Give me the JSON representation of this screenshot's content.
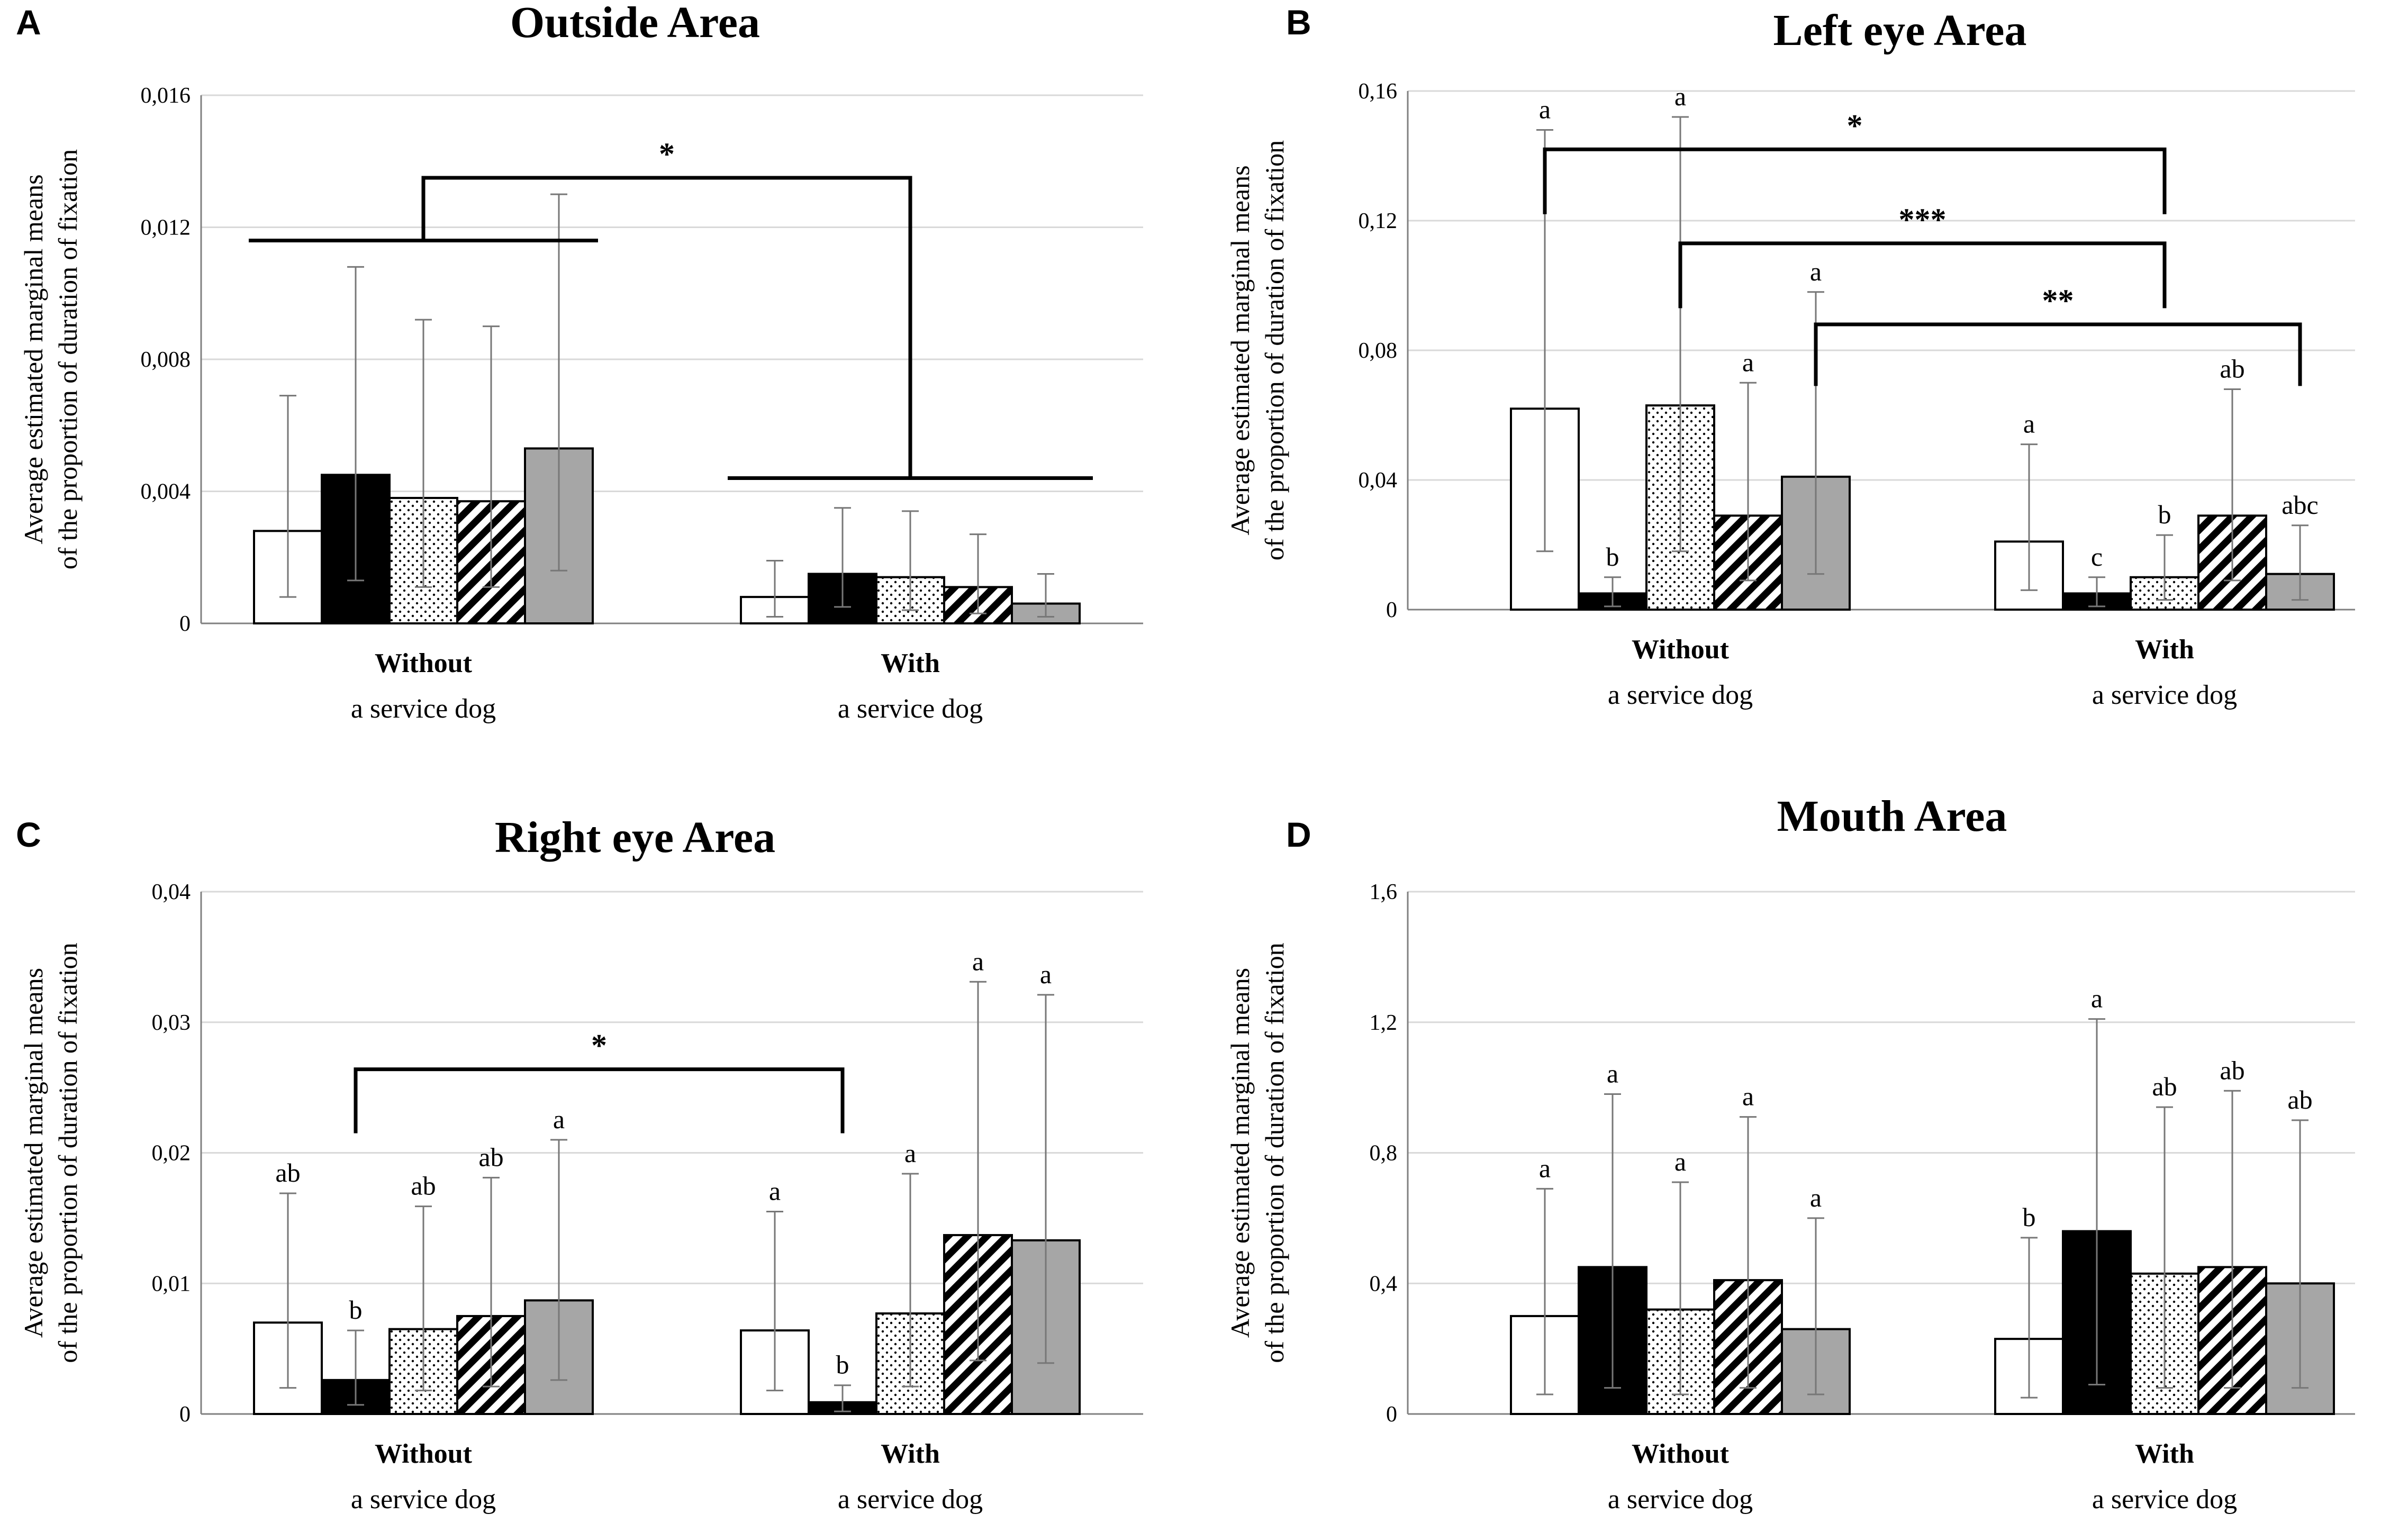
{
  "chart_data": [
    {
      "type": "bar",
      "letter": "A",
      "title": "Outside Area",
      "ylabel_line1": "Average estimated marginal means",
      "ylabel_line2": "of the proportion of duration of fixation",
      "ylim": [
        0,
        0.016
      ],
      "ticks": [
        0,
        0.004,
        0.008,
        0.012,
        0.016
      ],
      "tick_labels": [
        "0",
        "0,004",
        "0,008",
        "0,012",
        "0,016"
      ],
      "groups": [
        {
          "name": "Without",
          "sub": "a service  dog"
        },
        {
          "name": "With",
          "sub": "a service  dog"
        }
      ],
      "series": [
        {
          "pattern": "white",
          "values": [
            0.0028,
            0.0008
          ],
          "err_low": [
            0.0008,
            0.0002
          ],
          "err_high": [
            0.0069,
            0.0019
          ],
          "letters": [
            "",
            ""
          ]
        },
        {
          "pattern": "black",
          "values": [
            0.0045,
            0.0015
          ],
          "err_low": [
            0.0013,
            0.0005
          ],
          "err_high": [
            0.0108,
            0.0035
          ],
          "letters": [
            "",
            ""
          ]
        },
        {
          "pattern": "dots",
          "values": [
            0.0038,
            0.0014
          ],
          "err_low": [
            0.0011,
            0.0004
          ],
          "err_high": [
            0.0092,
            0.0034
          ],
          "letters": [
            "",
            ""
          ]
        },
        {
          "pattern": "stripes",
          "values": [
            0.0037,
            0.0011
          ],
          "err_low": [
            0.0011,
            0.0003
          ],
          "err_high": [
            0.009,
            0.0027
          ],
          "letters": [
            "",
            ""
          ]
        },
        {
          "pattern": "grey",
          "values": [
            0.0053,
            0.0006
          ],
          "err_low": [
            0.0016,
            0.0002
          ],
          "err_high": [
            0.013,
            0.0015
          ],
          "letters": [
            "",
            ""
          ]
        }
      ],
      "significance": [
        {
          "label": "*",
          "type": "group",
          "level": 0.0135,
          "left_leg": 0.0116,
          "right_leg": 0.0044
        }
      ]
    },
    {
      "type": "bar",
      "letter": "B",
      "title": "Left eye Area",
      "ylabel_line1": "Average estimated marginal means",
      "ylabel_line2": "of the proportion of duration of fixation",
      "ylim": [
        0,
        0.16
      ],
      "ticks": [
        0,
        0.04,
        0.08,
        0.12,
        0.16
      ],
      "tick_labels": [
        "0",
        "0,04",
        "0,08",
        "0,12",
        "0,16"
      ],
      "groups": [
        {
          "name": "Without",
          "sub": "a service  dog"
        },
        {
          "name": "With",
          "sub": "a service  dog"
        }
      ],
      "series": [
        {
          "pattern": "white",
          "values": [
            0.062,
            0.021
          ],
          "err_low": [
            0.018,
            0.006
          ],
          "err_high": [
            0.148,
            0.051
          ],
          "letters": [
            "a",
            "a"
          ]
        },
        {
          "pattern": "black",
          "values": [
            0.005,
            0.005
          ],
          "err_low": [
            0.001,
            0.001
          ],
          "err_high": [
            0.01,
            0.01
          ],
          "letters": [
            "b",
            "c"
          ]
        },
        {
          "pattern": "dots",
          "values": [
            0.063,
            0.01
          ],
          "err_low": [
            0.018,
            0.003
          ],
          "err_high": [
            0.152,
            0.023
          ],
          "letters": [
            "a",
            "b"
          ]
        },
        {
          "pattern": "stripes",
          "values": [
            0.029,
            0.029
          ],
          "err_low": [
            0.009,
            0.009
          ],
          "err_high": [
            0.07,
            0.068
          ],
          "letters": [
            "a",
            "ab"
          ]
        },
        {
          "pattern": "grey",
          "values": [
            0.041,
            0.011
          ],
          "err_low": [
            0.011,
            0.003
          ],
          "err_high": [
            0.098,
            0.026
          ],
          "letters": [
            "a",
            "abc"
          ]
        }
      ],
      "significance": [
        {
          "label": "*",
          "type": "bar",
          "from": [
            0,
            0
          ],
          "to": [
            1,
            2
          ],
          "level": 0.142,
          "left_leg": 0.122,
          "right_leg": 0.122
        },
        {
          "label": "***",
          "type": "bar",
          "from": [
            0,
            2
          ],
          "to": [
            1,
            2
          ],
          "level": 0.113,
          "left_leg": 0.093,
          "right_leg": 0.093
        },
        {
          "label": "**",
          "type": "bar",
          "from": [
            0,
            4
          ],
          "to": [
            1,
            4
          ],
          "level": 0.088,
          "left_leg": 0.069,
          "right_leg": 0.069
        }
      ]
    },
    {
      "type": "bar",
      "letter": "C",
      "title": "Right eye Area",
      "ylabel_line1": "Average estimated marginal means",
      "ylabel_line2": "of the proportion of duration of fixation",
      "ylim": [
        0,
        0.04
      ],
      "ticks": [
        0,
        0.01,
        0.02,
        0.03,
        0.04
      ],
      "tick_labels": [
        "0",
        "0,01",
        "0,02",
        "0,03",
        "0,04"
      ],
      "groups": [
        {
          "name": "Without",
          "sub": "a service  dog"
        },
        {
          "name": "With",
          "sub": "a service  dog"
        }
      ],
      "series": [
        {
          "pattern": "white",
          "values": [
            0.007,
            0.0064
          ],
          "err_low": [
            0.002,
            0.0018
          ],
          "err_high": [
            0.0169,
            0.0155
          ],
          "letters": [
            "ab",
            "a"
          ]
        },
        {
          "pattern": "black",
          "values": [
            0.0026,
            0.0009
          ],
          "err_low": [
            0.0007,
            0.0002
          ],
          "err_high": [
            0.0064,
            0.0022
          ],
          "letters": [
            "b",
            "b"
          ]
        },
        {
          "pattern": "dots",
          "values": [
            0.0065,
            0.0077
          ],
          "err_low": [
            0.0018,
            0.0021
          ],
          "err_high": [
            0.0159,
            0.0184
          ],
          "letters": [
            "ab",
            "a"
          ]
        },
        {
          "pattern": "stripes",
          "values": [
            0.0075,
            0.0137
          ],
          "err_low": [
            0.0021,
            0.0041
          ],
          "err_high": [
            0.0181,
            0.0331
          ],
          "letters": [
            "ab",
            "a"
          ]
        },
        {
          "pattern": "grey",
          "values": [
            0.0087,
            0.0133
          ],
          "err_low": [
            0.0026,
            0.0039
          ],
          "err_high": [
            0.021,
            0.0321
          ],
          "letters": [
            "a",
            "a"
          ]
        }
      ],
      "significance": [
        {
          "label": "*",
          "type": "bar",
          "from": [
            0,
            1
          ],
          "to": [
            1,
            1
          ],
          "level": 0.0264,
          "left_leg": 0.0215,
          "right_leg": 0.0215
        }
      ]
    },
    {
      "type": "bar",
      "letter": "D",
      "title": "Mouth Area",
      "ylabel_line1": "Average estimated marginal means",
      "ylabel_line2": "of the proportion of duration of fixation",
      "ylim": [
        0,
        1.6
      ],
      "ticks": [
        0,
        0.4,
        0.8,
        1.2,
        1.6
      ],
      "tick_labels": [
        "0",
        "0,4",
        "0,8",
        "1,2",
        "1,6"
      ],
      "groups": [
        {
          "name": "Without",
          "sub": "a service  dog"
        },
        {
          "name": "With",
          "sub": "a service  dog"
        }
      ],
      "series": [
        {
          "pattern": "white",
          "values": [
            0.3,
            0.23
          ],
          "err_low": [
            0.06,
            0.05
          ],
          "err_high": [
            0.69,
            0.54
          ],
          "letters": [
            "a",
            "b"
          ]
        },
        {
          "pattern": "black",
          "values": [
            0.45,
            0.56
          ],
          "err_low": [
            0.08,
            0.09
          ],
          "err_high": [
            0.98,
            1.21
          ],
          "letters": [
            "a",
            "a"
          ]
        },
        {
          "pattern": "dots",
          "values": [
            0.32,
            0.43
          ],
          "err_low": [
            0.06,
            0.08
          ],
          "err_high": [
            0.71,
            0.94
          ],
          "letters": [
            "a",
            "ab"
          ]
        },
        {
          "pattern": "stripes",
          "values": [
            0.41,
            0.45
          ],
          "err_low": [
            0.08,
            0.08
          ],
          "err_high": [
            0.91,
            0.99
          ],
          "letters": [
            "a",
            "ab"
          ]
        },
        {
          "pattern": "grey",
          "values": [
            0.26,
            0.4
          ],
          "err_low": [
            0.06,
            0.08
          ],
          "err_high": [
            0.6,
            0.9
          ],
          "letters": [
            "a",
            "ab"
          ]
        }
      ],
      "significance": []
    }
  ]
}
